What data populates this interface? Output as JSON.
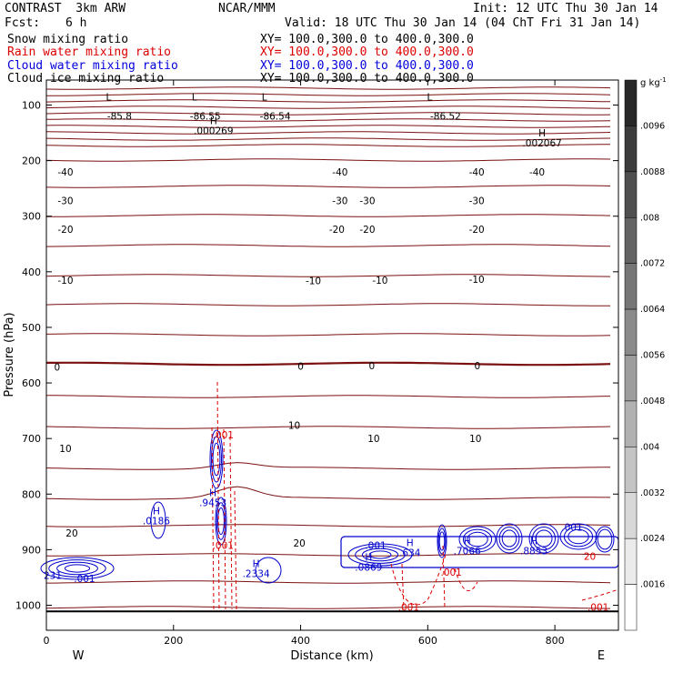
{
  "header": {
    "model": "CONTRAST  3km ARW",
    "org": "NCAR/MMM",
    "init": "Init: 12 UTC Thu 30 Jan 14",
    "fcst_label": "Fcst:",
    "fcst_value": "6 h",
    "valid": "Valid: 18 UTC Thu 30 Jan 14 (04 ChT Fri 31 Jan 14)"
  },
  "legend": [
    {
      "name": "Snow mixing ratio",
      "xy": "XY= 100.0,300.0 to 400.0,300.0",
      "color": "#000000"
    },
    {
      "name": "Rain water mixing ratio",
      "xy": "XY= 100.0,300.0 to 400.0,300.0",
      "color": "#dd0000"
    },
    {
      "name": "Cloud water mixing ratio",
      "xy": "XY= 100.0,300.0 to 400.0,300.0",
      "color": "#0000dd"
    },
    {
      "name": "Cloud ice mixing ratio",
      "xy": "XY= 100.0,300.0 to 400.0,300.0",
      "color": "#000000"
    }
  ],
  "chart_data": {
    "type": "cross-section contour",
    "xlabel": "Distance (km)",
    "ylabel": "Pressure (hPa)",
    "xlim": [
      0,
      900
    ],
    "ylim": [
      1045,
      55
    ],
    "xticks": [
      0,
      200,
      400,
      600,
      800
    ],
    "yticks": [
      100,
      200,
      300,
      400,
      500,
      600,
      700,
      800,
      900,
      1000
    ],
    "x_endpoint_labels": {
      "left": "W",
      "right": "E"
    },
    "colorbar": {
      "unit_label": "g kg",
      "unit_exponent": "-1",
      "ticks": [
        ".0096",
        ".0088",
        ".008",
        ".0072",
        ".0064",
        ".0056",
        ".0048",
        ".004",
        ".0032",
        ".0024",
        ".0016"
      ]
    },
    "temperature_contours": {
      "color": "#7a1010",
      "labels": [
        {
          "text": "-85.8",
          "x": 115,
          "p": 120
        },
        {
          "text": "-86.55",
          "x": 250,
          "p": 120
        },
        {
          "text": "-86.54",
          "x": 360,
          "p": 120
        },
        {
          "text": "-86.52",
          "x": 628,
          "p": 120
        },
        {
          "text": "-40",
          "x": 30,
          "p": 220
        },
        {
          "text": "-40",
          "x": 462,
          "p": 220
        },
        {
          "text": "-40",
          "x": 677,
          "p": 220
        },
        {
          "text": "-40",
          "x": 772,
          "p": 220
        },
        {
          "text": "-30",
          "x": 30,
          "p": 272
        },
        {
          "text": "-30",
          "x": 462,
          "p": 272
        },
        {
          "text": "-30",
          "x": 505,
          "p": 272
        },
        {
          "text": "-30",
          "x": 677,
          "p": 272
        },
        {
          "text": "-20",
          "x": 30,
          "p": 323
        },
        {
          "text": "-20",
          "x": 457,
          "p": 323
        },
        {
          "text": "-20",
          "x": 505,
          "p": 323
        },
        {
          "text": "-20",
          "x": 677,
          "p": 323
        },
        {
          "text": "-10",
          "x": 30,
          "p": 415
        },
        {
          "text": "-10",
          "x": 420,
          "p": 416
        },
        {
          "text": "-10",
          "x": 525,
          "p": 415
        },
        {
          "text": "-10",
          "x": 677,
          "p": 413
        },
        {
          "text": "0",
          "x": 17,
          "p": 571
        },
        {
          "text": "0",
          "x": 400,
          "p": 570
        },
        {
          "text": "0",
          "x": 512,
          "p": 569
        },
        {
          "text": "0",
          "x": 678,
          "p": 569
        },
        {
          "text": "10",
          "x": 30,
          "p": 718
        },
        {
          "text": "10",
          "x": 390,
          "p": 676
        },
        {
          "text": "10",
          "x": 515,
          "p": 700
        },
        {
          "text": "10",
          "x": 675,
          "p": 700
        },
        {
          "text": "20",
          "x": 40,
          "p": 870
        },
        {
          "text": "20",
          "x": 398,
          "p": 888
        }
      ],
      "extrema": [
        {
          "text": "L",
          "x": 98,
          "p": 85
        },
        {
          "text": "L",
          "x": 233,
          "p": 85
        },
        {
          "text": "L",
          "x": 343,
          "p": 85
        },
        {
          "text": "L",
          "x": 603,
          "p": 85
        },
        {
          "text": "H",
          "x": 263,
          "p": 128,
          "value": ".000269"
        },
        {
          "text": "H",
          "x": 780,
          "p": 150,
          "value": ".002067"
        }
      ]
    },
    "cloud_water": {
      "color": "#0000cc",
      "labels": [
        {
          "text": "H",
          "x": 173,
          "p": 830,
          "value": ".0186"
        },
        {
          "text": "H",
          "x": 262,
          "p": 797,
          "value": ".9453"
        },
        {
          "text": "H",
          "x": 330,
          "p": 925,
          "value": ".2334"
        },
        {
          "text": "H",
          "x": 572,
          "p": 887,
          "value": ".634"
        },
        {
          "text": "H",
          "x": 662,
          "p": 884,
          "value": ".7066"
        },
        {
          "text": "H",
          "x": 767,
          "p": 884,
          "value": ".8853"
        },
        {
          "text": "H",
          "x": 507,
          "p": 913,
          "value": ".0869"
        },
        {
          "text": ".001",
          "x": 518,
          "p": 892
        },
        {
          "text": ".001",
          "x": 827,
          "p": 859
        },
        {
          "text": ".001",
          "x": 60,
          "p": 952
        },
        {
          "text": "231",
          "x": 10,
          "p": 946
        }
      ]
    },
    "rain_water": {
      "color": "#dd0000",
      "labels": [
        {
          "text": ".001",
          "x": 278,
          "p": 693
        },
        {
          "text": ".001",
          "x": 278,
          "p": 892
        },
        {
          "text": ".001",
          "x": 570,
          "p": 1003
        },
        {
          "text": ".001",
          "x": 868,
          "p": 1003
        },
        {
          "text": ".001",
          "x": 637,
          "p": 940
        },
        {
          "text": "20",
          "x": 855,
          "p": 912
        }
      ]
    }
  }
}
